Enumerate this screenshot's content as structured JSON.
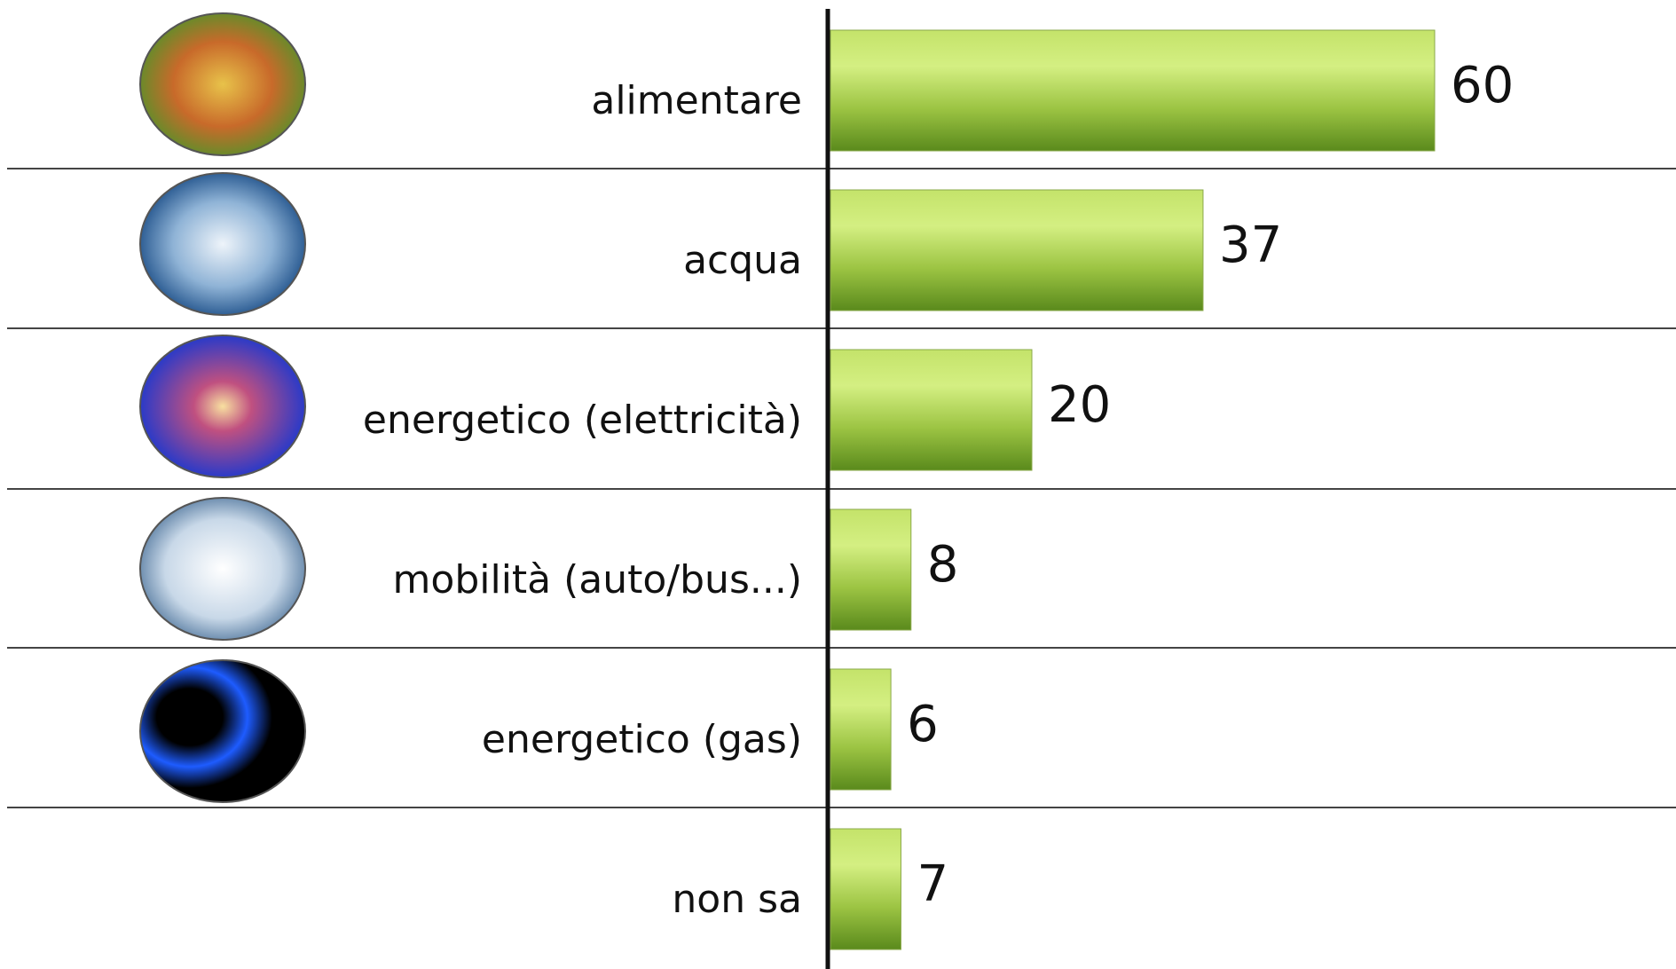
{
  "chart_data": {
    "type": "bar",
    "orientation": "horizontal",
    "categories": [
      "alimentare",
      "acqua",
      "energetico (elettricità)",
      "mobilità (auto/bus...)",
      "energetico (gas)",
      "non sa"
    ],
    "values": [
      60,
      37,
      20,
      8,
      6,
      7
    ],
    "color": "#9cc443"
  }
}
